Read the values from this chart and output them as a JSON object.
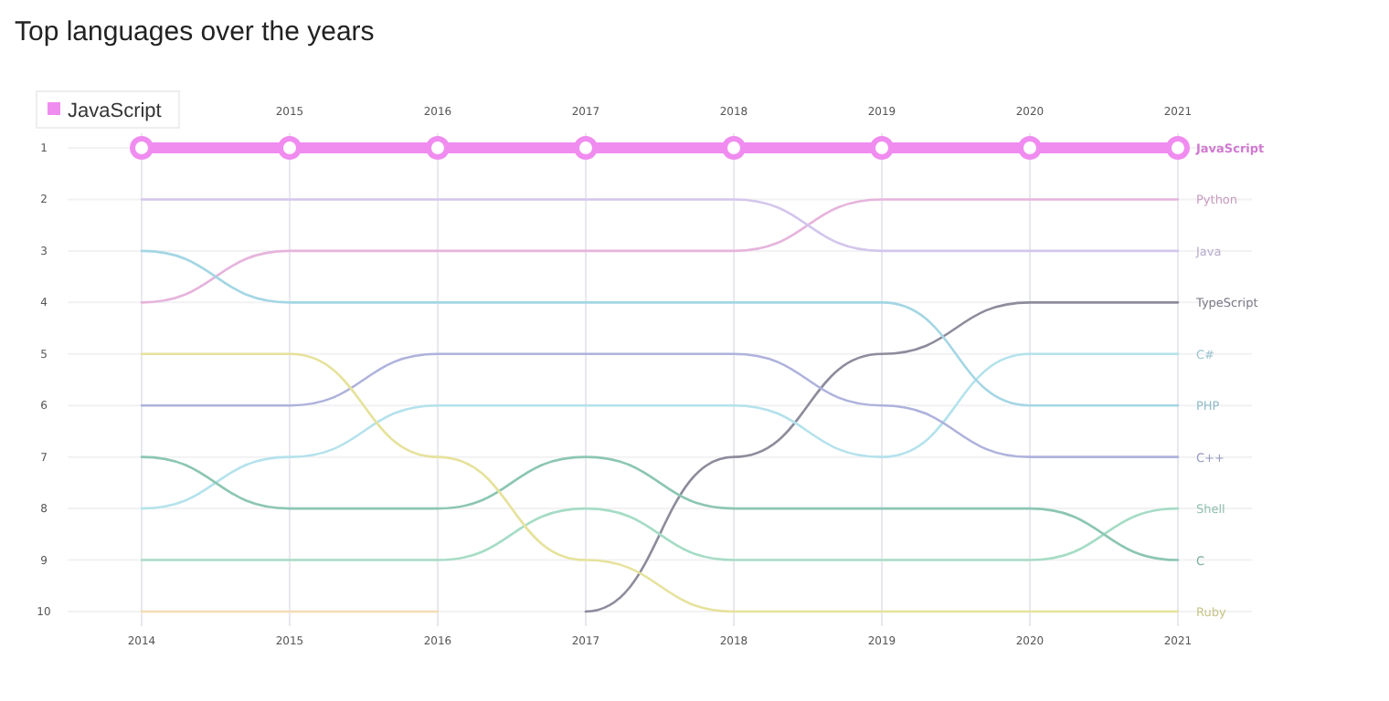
{
  "chart_data": {
    "type": "line",
    "title": "Top languages over the years",
    "x": [
      2014,
      2015,
      2016,
      2017,
      2018,
      2019,
      2020,
      2021
    ],
    "xlim": [
      2013.5,
      2021.5
    ],
    "xticks": [
      2014,
      2015,
      2016,
      2017,
      2018,
      2019,
      2020,
      2021
    ],
    "x2lim": [
      2013.5,
      2021.5
    ],
    "x2ticks": [
      2015,
      2016,
      2017,
      2018,
      2019,
      2020,
      2021
    ],
    "ylim": [
      10,
      1
    ],
    "yticks": [
      1,
      2,
      3,
      4,
      5,
      6,
      7,
      8,
      9,
      10
    ],
    "grid": true,
    "legend": "top left",
    "series": [
      {
        "name": "JavaScript",
        "color": "#f08cf0",
        "marker": "circle",
        "values": [
          1,
          1,
          1,
          1,
          1,
          1,
          1,
          1
        ]
      },
      {
        "name": "Python",
        "color": "#e6b4dc",
        "values": [
          4,
          3,
          3,
          3,
          3,
          2,
          2,
          2
        ]
      },
      {
        "name": "Java",
        "color": "#d4c6ec",
        "values": [
          2,
          2,
          2,
          2,
          2,
          3,
          3,
          3
        ]
      },
      {
        "name": "TypeScript",
        "color": "#8c8c9c",
        "values": [
          null,
          null,
          null,
          10,
          7,
          5,
          4,
          4
        ]
      },
      {
        "name": "C#",
        "color": "#b4e2ec",
        "values": [
          8,
          7,
          6,
          6,
          6,
          7,
          5,
          5
        ]
      },
      {
        "name": "PHP",
        "color": "#a4d6e4",
        "values": [
          3,
          4,
          4,
          4,
          4,
          4,
          6,
          6
        ]
      },
      {
        "name": "C++",
        "color": "#aeb2dc",
        "values": [
          6,
          6,
          5,
          5,
          5,
          6,
          7,
          7
        ]
      },
      {
        "name": "Shell",
        "color": "#a6dcc6",
        "values": [
          9,
          9,
          9,
          8,
          9,
          9,
          9,
          8
        ]
      },
      {
        "name": "C",
        "color": "#8cc6b2",
        "values": [
          7,
          8,
          8,
          7,
          8,
          8,
          8,
          9
        ]
      },
      {
        "name": "Ruby",
        "color": "#e6e29c",
        "values": [
          5,
          5,
          7,
          9,
          10,
          10,
          10,
          10
        ]
      },
      {
        "color": "#f2dcb4",
        "values": [
          10,
          10,
          10,
          null,
          null,
          null,
          null,
          null
        ]
      }
    ]
  }
}
